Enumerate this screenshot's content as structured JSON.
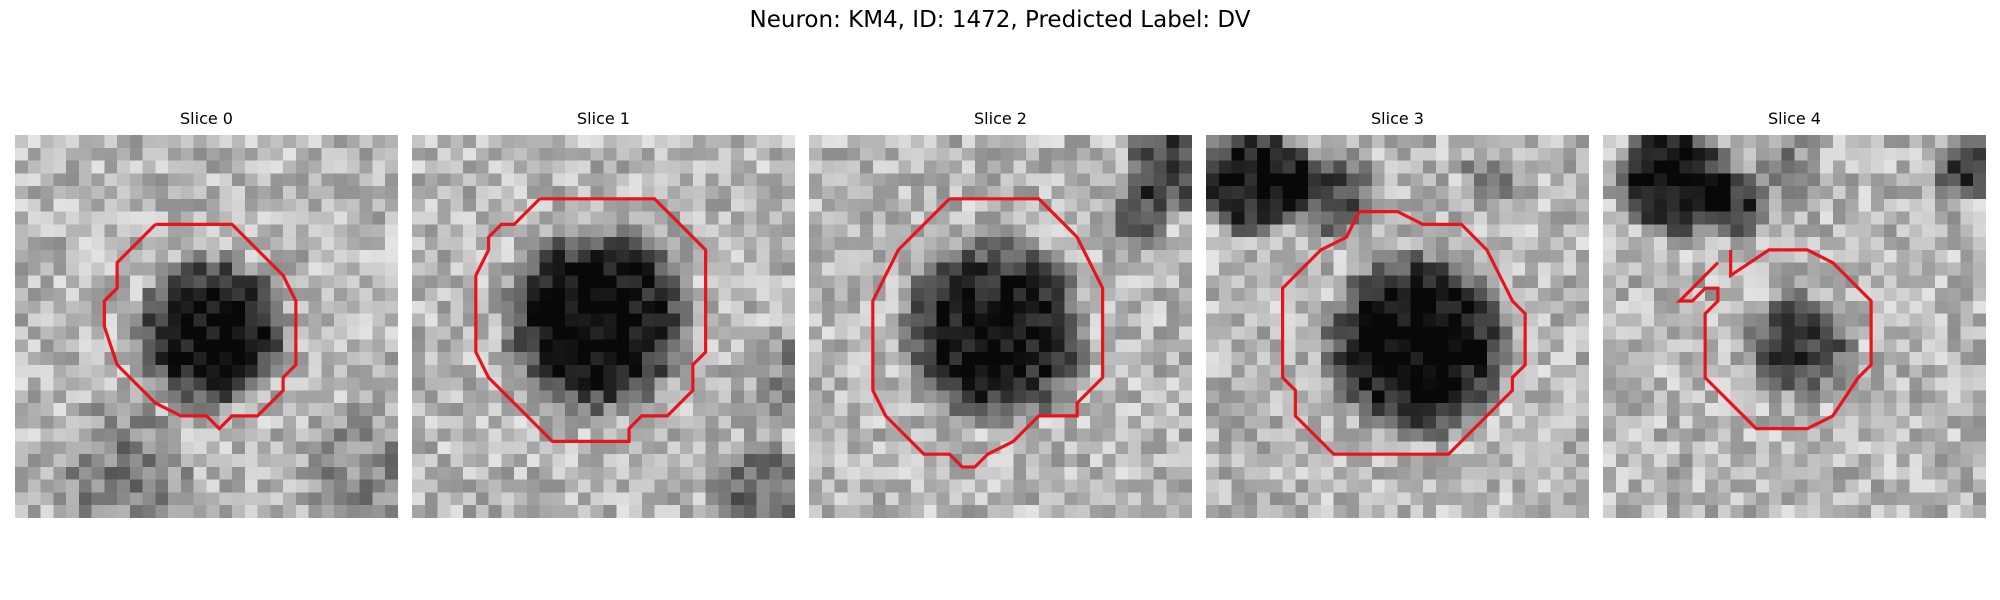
{
  "figure": {
    "title": "Neuron: KM4, ID: 1472, Predicted Label: DV"
  },
  "style": {
    "contour_color": "#e8141b",
    "colormap": "grayscale"
  },
  "panels": [
    {
      "title": "Slice 0"
    },
    {
      "title": "Slice 1"
    },
    {
      "title": "Slice 2"
    },
    {
      "title": "Slice 3"
    },
    {
      "title": "Slice 4"
    }
  ]
}
